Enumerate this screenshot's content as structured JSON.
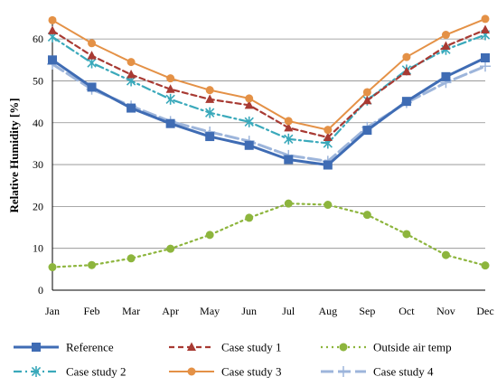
{
  "chart_data": {
    "type": "line",
    "title": "",
    "xlabel": "",
    "ylabel": "Relative Humidity [%]",
    "ylim": [
      0,
      65
    ],
    "yticks": [
      0,
      10,
      20,
      30,
      40,
      50,
      60
    ],
    "grid": "horizontal",
    "legend_position": "bottom",
    "categories": [
      "Jan",
      "Feb",
      "Mar",
      "Apr",
      "May",
      "Jun",
      "Jul",
      "Aug",
      "Sep",
      "Oct",
      "Nov",
      "Dec"
    ],
    "series": [
      {
        "name": "Reference",
        "values": [
          55,
          48.5,
          43.5,
          39.8,
          36.7,
          34.6,
          31.2,
          29.9,
          38.2,
          45.1,
          51,
          55.5
        ],
        "color": "#3f6cb4",
        "dash": "solid",
        "marker": "square",
        "width": 3
      },
      {
        "name": "Case study 1",
        "values": [
          62,
          56,
          51.5,
          48,
          45.6,
          44.2,
          38.8,
          36.5,
          45.3,
          52.2,
          58.3,
          62.2
        ],
        "color": "#a83a33",
        "dash": "dash",
        "marker": "triangle",
        "width": 2.2
      },
      {
        "name": "Outside air temp",
        "values": [
          5.5,
          6,
          7.6,
          9.9,
          13.2,
          17.3,
          20.7,
          20.4,
          18,
          13.4,
          8.4,
          5.9
        ],
        "color": "#8db53d",
        "dash": "dot",
        "marker": "circle",
        "width": 2.2
      },
      {
        "name": "Case study 2",
        "values": [
          60.5,
          54.3,
          50,
          45.6,
          42.4,
          40.2,
          36.1,
          35.1,
          45.4,
          52.6,
          57.5,
          61
        ],
        "color": "#3aa9bb",
        "dash": "dashdot",
        "marker": "asterisk",
        "width": 2.2
      },
      {
        "name": "Case study 3",
        "values": [
          64.5,
          59,
          54.5,
          50.6,
          47.8,
          45.8,
          40.4,
          38.3,
          47.3,
          55.7,
          61,
          64.8
        ],
        "color": "#e49146",
        "dash": "solid",
        "marker": "circle",
        "width": 2
      },
      {
        "name": "Case study 4",
        "values": [
          54,
          48,
          44,
          40.3,
          37.8,
          35.6,
          32.2,
          30.8,
          38.9,
          44.8,
          49.6,
          53.5
        ],
        "color": "#9db5db",
        "dash": "longdash",
        "marker": "plus",
        "width": 3
      }
    ]
  }
}
